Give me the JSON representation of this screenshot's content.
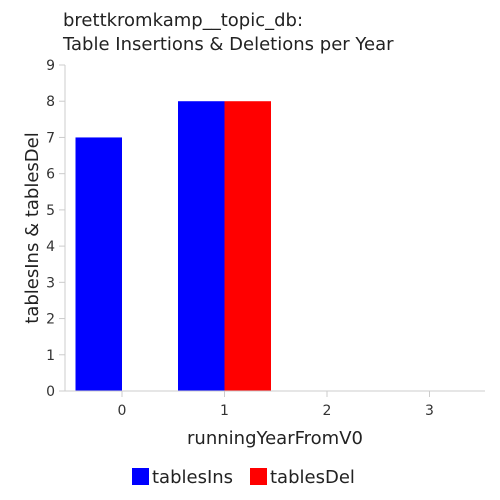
{
  "chart_data": {
    "type": "bar",
    "title": [
      "brettkromkamp__topic_db:",
      "Table Insertions & Deletions per Year"
    ],
    "xlabel": "runningYearFromV0",
    "ylabel": "tablesIns & tablesDel",
    "categories": [
      "0",
      "1",
      "2",
      "3"
    ],
    "series": [
      {
        "name": "tablesIns",
        "color": "#0000ff",
        "values": [
          7,
          8,
          0,
          0
        ]
      },
      {
        "name": "tablesDel",
        "color": "#ff0000",
        "values": [
          0,
          8,
          0,
          0
        ]
      }
    ],
    "ylim": [
      0,
      9
    ],
    "yticks": [
      0,
      1,
      2,
      3,
      4,
      5,
      6,
      7,
      8,
      9
    ],
    "grid": false,
    "legend_position": "bottom-center"
  }
}
